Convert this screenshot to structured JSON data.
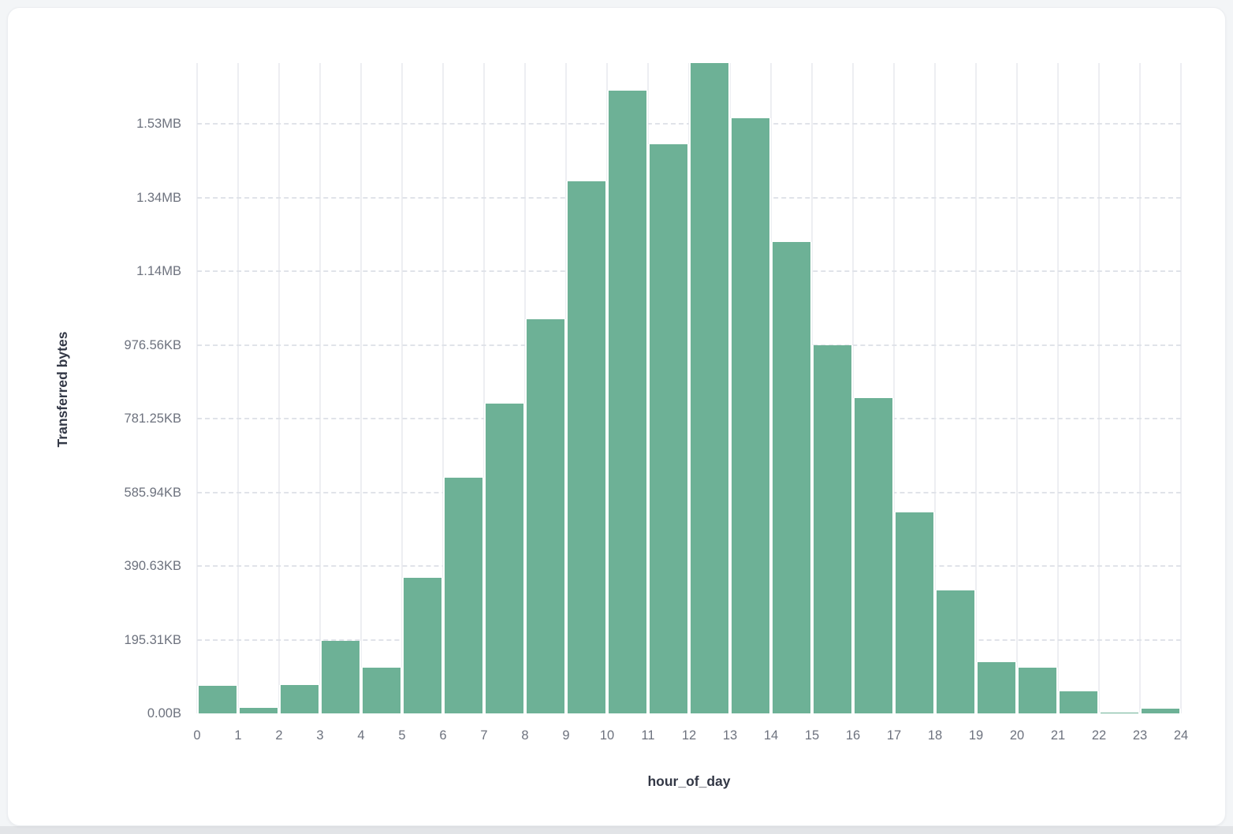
{
  "page": {
    "background_color": "#f3f5f7",
    "card_background_color": "#ffffff"
  },
  "chart_data": {
    "type": "bar",
    "subtype": "histogram",
    "title": "",
    "xlabel": "hour_of_day",
    "ylabel": "Transferred bytes",
    "categories": [
      0,
      1,
      2,
      3,
      4,
      5,
      6,
      7,
      8,
      9,
      10,
      11,
      12,
      13,
      14,
      15,
      16,
      17,
      18,
      19,
      20,
      21,
      22,
      23
    ],
    "values": [
      75000,
      16000,
      78000,
      196000,
      125000,
      368000,
      640000,
      840000,
      1070000,
      1445000,
      1690000,
      1545000,
      1765000,
      1615000,
      1280000,
      1000000,
      855000,
      545000,
      333000,
      140000,
      125000,
      59000,
      3000,
      12000
    ],
    "values_unit": "bytes",
    "ylim": [
      0,
      1765000
    ],
    "x_axis_ticks": [
      "0",
      "1",
      "2",
      "3",
      "4",
      "5",
      "6",
      "7",
      "8",
      "9",
      "10",
      "11",
      "12",
      "13",
      "14",
      "15",
      "16",
      "17",
      "18",
      "19",
      "20",
      "21",
      "22",
      "23",
      "24"
    ],
    "y_axis_ticks": [
      {
        "label": "0.00B",
        "value": 0
      },
      {
        "label": "195.31KB",
        "value": 200000
      },
      {
        "label": "390.63KB",
        "value": 400000
      },
      {
        "label": "585.94KB",
        "value": 600000
      },
      {
        "label": "781.25KB",
        "value": 800000
      },
      {
        "label": "976.56KB",
        "value": 1000000
      },
      {
        "label": "1.14MB",
        "value": 1200000
      },
      {
        "label": "1.34MB",
        "value": 1400000
      },
      {
        "label": "1.53MB",
        "value": 1600000
      }
    ],
    "grid": {
      "horizontal": "dashed",
      "vertical": "solid"
    },
    "legend": "none",
    "bar_color": "#6db196",
    "vertical_gridline_color": "#edeef2",
    "horizontal_gridline_color": "#e0e3e9",
    "tick_label_color": "#6d727e",
    "axis_title_color": "#333846"
  }
}
